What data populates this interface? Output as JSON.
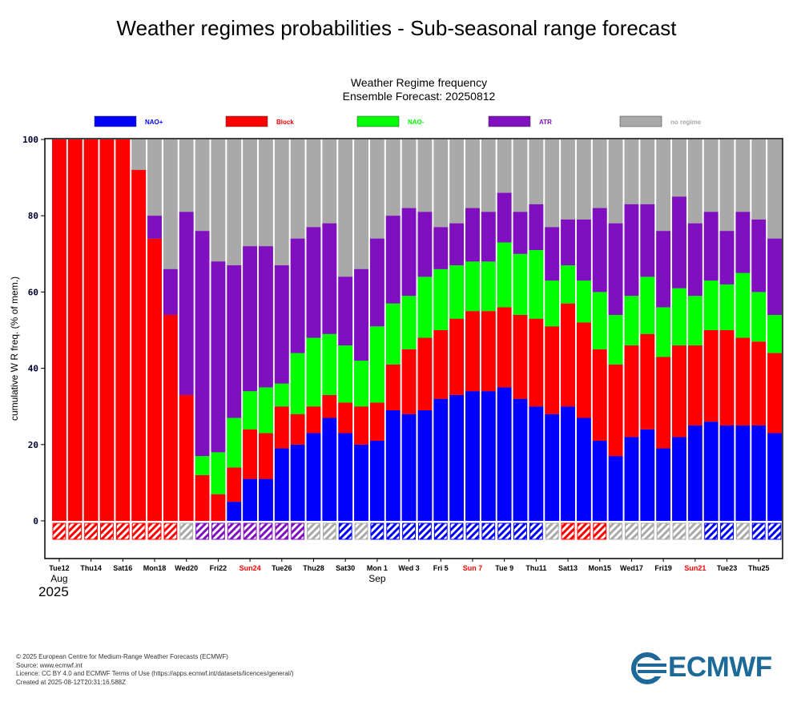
{
  "page_title": "Weather regimes probabilities - Sub-seasonal range forecast",
  "footer": {
    "line1": "© 2025 European Centre for Medium-Range Weather Forecasts (ECMWF)",
    "line2": "Source: www.ecmwf.int",
    "line3": "Licence: CC BY 4.0 and ECMWF Terms of Use (https://apps.ecmwf.int/datasets/licences/general/)",
    "line4": "Created at 2025-08-12T20:31:16.588Z"
  },
  "logo_text": "ECMWF",
  "chart_data": {
    "type": "bar",
    "stacked": true,
    "title": "Weather Regime frequency",
    "subtitle": "Ensemble Forecast: 20250812",
    "ylabel": "cumulative W R freq. (% of mem.)",
    "ylim": [
      -10,
      100
    ],
    "yticks": [
      0,
      20,
      40,
      60,
      80,
      100
    ],
    "legend_position": "top",
    "colors": {
      "NAO+": "#0000ff",
      "Block": "#ff0000",
      "NAO-": "#00ff00",
      "ATR": "#7f0fbf",
      "no regime": "#a9a9a9"
    },
    "legend": [
      {
        "name": "NAO+",
        "color": "#0000ff",
        "text_color": "#0000ff"
      },
      {
        "name": "Block",
        "color": "#ff0000",
        "text_color": "#ff0000"
      },
      {
        "name": "NAO-",
        "color": "#00ff00",
        "text_color": "#00ff00"
      },
      {
        "name": "ATR",
        "color": "#7f0fbf",
        "text_color": "#7f0fbf"
      },
      {
        "name": "no regime",
        "color": "#a9a9a9",
        "text_color": "#a9a9a9"
      }
    ],
    "x_tick_labels": [
      {
        "label": "Tue12",
        "day": 0,
        "color": "#000000"
      },
      {
        "label": "Thu14",
        "day": 2,
        "color": "#000000"
      },
      {
        "label": "Sat16",
        "day": 4,
        "color": "#000000"
      },
      {
        "label": "Mon18",
        "day": 6,
        "color": "#000000"
      },
      {
        "label": "Wed20",
        "day": 8,
        "color": "#000000"
      },
      {
        "label": "Fri22",
        "day": 10,
        "color": "#000000"
      },
      {
        "label": "Sun24",
        "day": 12,
        "color": "#ff0000"
      },
      {
        "label": "Tue26",
        "day": 14,
        "color": "#000000"
      },
      {
        "label": "Thu28",
        "day": 16,
        "color": "#000000"
      },
      {
        "label": "Sat30",
        "day": 18,
        "color": "#000000"
      },
      {
        "label": "Mon 1",
        "day": 20,
        "color": "#000000"
      },
      {
        "label": "Wed 3",
        "day": 22,
        "color": "#000000"
      },
      {
        "label": "Fri 5",
        "day": 24,
        "color": "#000000"
      },
      {
        "label": "Sun 7",
        "day": 26,
        "color": "#ff0000"
      },
      {
        "label": "Tue 9",
        "day": 28,
        "color": "#000000"
      },
      {
        "label": "Thu11",
        "day": 30,
        "color": "#000000"
      },
      {
        "label": "Sat13",
        "day": 32,
        "color": "#000000"
      },
      {
        "label": "Mon15",
        "day": 34,
        "color": "#000000"
      },
      {
        "label": "Wed17",
        "day": 36,
        "color": "#000000"
      },
      {
        "label": "Fri19",
        "day": 38,
        "color": "#000000"
      },
      {
        "label": "Sun21",
        "day": 40,
        "color": "#ff0000"
      },
      {
        "label": "Tue23",
        "day": 42,
        "color": "#000000"
      },
      {
        "label": "Thu25",
        "day": 44,
        "color": "#000000"
      }
    ],
    "month_labels": [
      {
        "label": "Aug",
        "day": 0
      },
      {
        "label": "Sep",
        "day": 20
      }
    ],
    "year_label": "2025",
    "days": [
      {
        "nao_plus": 0,
        "block": 100,
        "nao_minus": 0,
        "atr": 0,
        "dominant": "Block"
      },
      {
        "nao_plus": 0,
        "block": 100,
        "nao_minus": 0,
        "atr": 0,
        "dominant": "Block"
      },
      {
        "nao_plus": 0,
        "block": 100,
        "nao_minus": 0,
        "atr": 0,
        "dominant": "Block"
      },
      {
        "nao_plus": 0,
        "block": 100,
        "nao_minus": 0,
        "atr": 0,
        "dominant": "Block"
      },
      {
        "nao_plus": 0,
        "block": 100,
        "nao_minus": 0,
        "atr": 0,
        "dominant": "Block"
      },
      {
        "nao_plus": 0,
        "block": 92,
        "nao_minus": 0,
        "atr": 0,
        "dominant": "Block"
      },
      {
        "nao_plus": 0,
        "block": 74,
        "nao_minus": 0,
        "atr": 6,
        "dominant": "Block"
      },
      {
        "nao_plus": 0,
        "block": 54,
        "nao_minus": 0,
        "atr": 12,
        "dominant": "Block"
      },
      {
        "nao_plus": 0,
        "block": 33,
        "nao_minus": 0,
        "atr": 48,
        "dominant": "no regime"
      },
      {
        "nao_plus": 0,
        "block": 12,
        "nao_minus": 5,
        "atr": 59,
        "dominant": "ATR"
      },
      {
        "nao_plus": 0,
        "block": 7,
        "nao_minus": 11,
        "atr": 50,
        "dominant": "ATR"
      },
      {
        "nao_plus": 5,
        "block": 9,
        "nao_minus": 13,
        "atr": 40,
        "dominant": "ATR"
      },
      {
        "nao_plus": 11,
        "block": 13,
        "nao_minus": 10,
        "atr": 38,
        "dominant": "ATR"
      },
      {
        "nao_plus": 11,
        "block": 12,
        "nao_minus": 12,
        "atr": 37,
        "dominant": "ATR"
      },
      {
        "nao_plus": 19,
        "block": 11,
        "nao_minus": 6,
        "atr": 31,
        "dominant": "ATR"
      },
      {
        "nao_plus": 20,
        "block": 8,
        "nao_minus": 16,
        "atr": 30,
        "dominant": "ATR"
      },
      {
        "nao_plus": 23,
        "block": 7,
        "nao_minus": 18,
        "atr": 29,
        "dominant": "no regime"
      },
      {
        "nao_plus": 27,
        "block": 6,
        "nao_minus": 16,
        "atr": 29,
        "dominant": "no regime"
      },
      {
        "nao_plus": 23,
        "block": 8,
        "nao_minus": 15,
        "atr": 18,
        "dominant": "NAO+"
      },
      {
        "nao_plus": 20,
        "block": 10,
        "nao_minus": 12,
        "atr": 24,
        "dominant": "no regime"
      },
      {
        "nao_plus": 21,
        "block": 10,
        "nao_minus": 20,
        "atr": 23,
        "dominant": "NAO+"
      },
      {
        "nao_plus": 29,
        "block": 12,
        "nao_minus": 16,
        "atr": 23,
        "dominant": "NAO+"
      },
      {
        "nao_plus": 28,
        "block": 17,
        "nao_minus": 14,
        "atr": 23,
        "dominant": "NAO+"
      },
      {
        "nao_plus": 29,
        "block": 19,
        "nao_minus": 16,
        "atr": 17,
        "dominant": "NAO+"
      },
      {
        "nao_plus": 32,
        "block": 18,
        "nao_minus": 16,
        "atr": 11,
        "dominant": "NAO+"
      },
      {
        "nao_plus": 33,
        "block": 20,
        "nao_minus": 14,
        "atr": 11,
        "dominant": "NAO+"
      },
      {
        "nao_plus": 34,
        "block": 21,
        "nao_minus": 13,
        "atr": 14,
        "dominant": "NAO+"
      },
      {
        "nao_plus": 34,
        "block": 21,
        "nao_minus": 13,
        "atr": 13,
        "dominant": "NAO+"
      },
      {
        "nao_plus": 35,
        "block": 21,
        "nao_minus": 17,
        "atr": 13,
        "dominant": "NAO+"
      },
      {
        "nao_plus": 32,
        "block": 22,
        "nao_minus": 16,
        "atr": 11,
        "dominant": "NAO+"
      },
      {
        "nao_plus": 30,
        "block": 23,
        "nao_minus": 18,
        "atr": 12,
        "dominant": "NAO+"
      },
      {
        "nao_plus": 28,
        "block": 23,
        "nao_minus": 12,
        "atr": 14,
        "dominant": "no regime"
      },
      {
        "nao_plus": 30,
        "block": 27,
        "nao_minus": 10,
        "atr": 12,
        "dominant": "Block"
      },
      {
        "nao_plus": 27,
        "block": 25,
        "nao_minus": 11,
        "atr": 16,
        "dominant": "Block"
      },
      {
        "nao_plus": 21,
        "block": 24,
        "nao_minus": 15,
        "atr": 22,
        "dominant": "Block"
      },
      {
        "nao_plus": 17,
        "block": 24,
        "nao_minus": 13,
        "atr": 24,
        "dominant": "no regime"
      },
      {
        "nao_plus": 22,
        "block": 24,
        "nao_minus": 13,
        "atr": 24,
        "dominant": "no regime"
      },
      {
        "nao_plus": 24,
        "block": 25,
        "nao_minus": 15,
        "atr": 19,
        "dominant": "no regime"
      },
      {
        "nao_plus": 19,
        "block": 24,
        "nao_minus": 13,
        "atr": 20,
        "dominant": "no regime"
      },
      {
        "nao_plus": 22,
        "block": 24,
        "nao_minus": 15,
        "atr": 24,
        "dominant": "no regime"
      },
      {
        "nao_plus": 25,
        "block": 21,
        "nao_minus": 13,
        "atr": 19,
        "dominant": "no regime"
      },
      {
        "nao_plus": 26,
        "block": 24,
        "nao_minus": 13,
        "atr": 18,
        "dominant": "NAO+"
      },
      {
        "nao_plus": 25,
        "block": 25,
        "nao_minus": 12,
        "atr": 14,
        "dominant": "NAO+"
      },
      {
        "nao_plus": 25,
        "block": 23,
        "nao_minus": 17,
        "atr": 16,
        "dominant": "no regime"
      },
      {
        "nao_plus": 25,
        "block": 22,
        "nao_minus": 13,
        "atr": 19,
        "dominant": "NAO+"
      },
      {
        "nao_plus": 23,
        "block": 21,
        "nao_minus": 10,
        "atr": 20,
        "dominant": "NAO+"
      }
    ]
  }
}
